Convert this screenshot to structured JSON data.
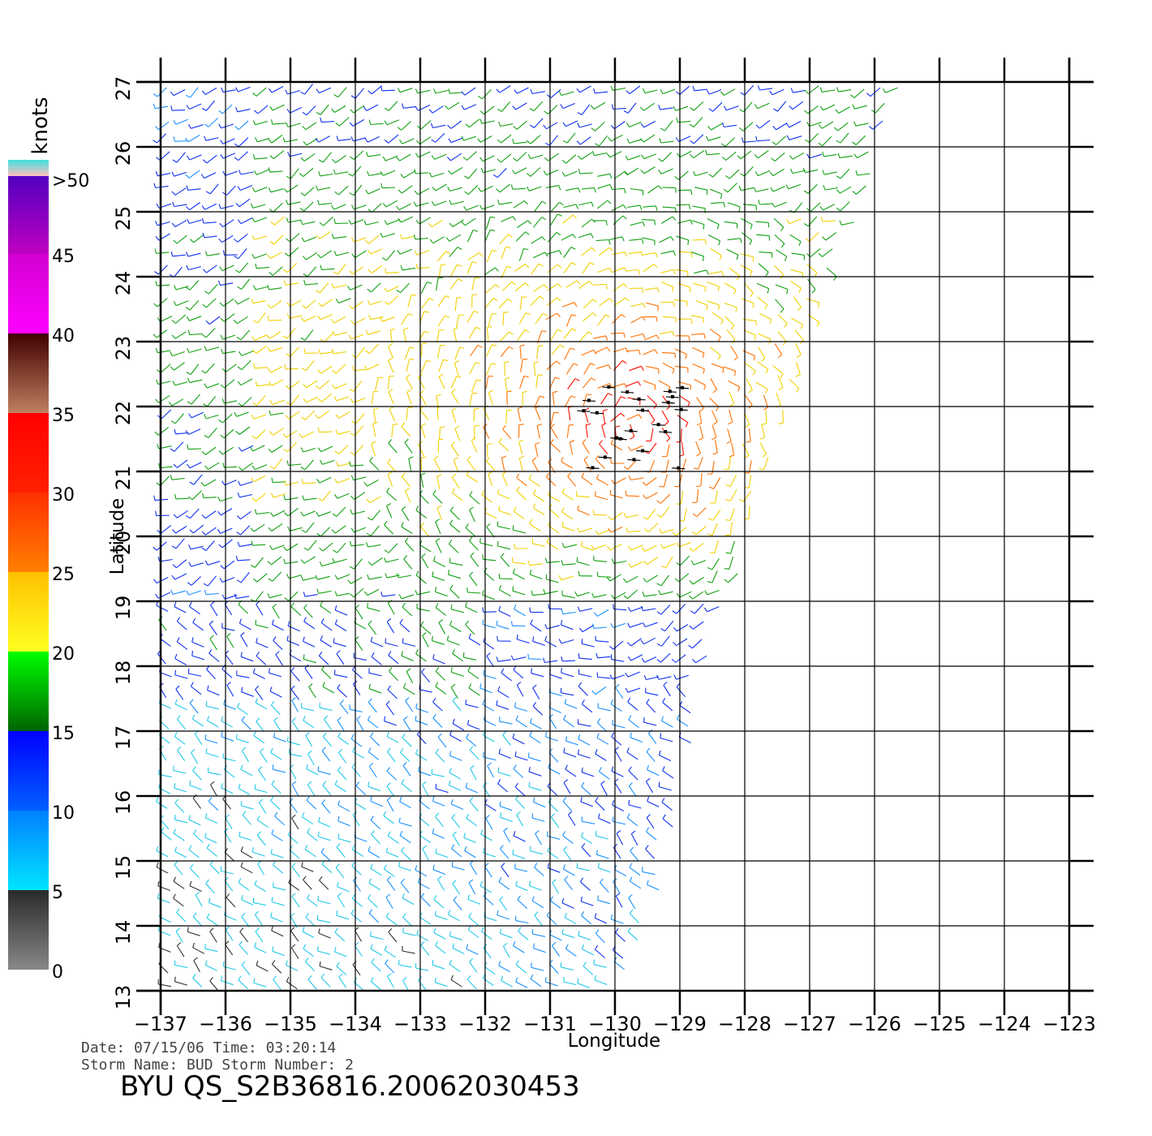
{
  "chart_data": {
    "type": "scatter",
    "subtype": "wind-barb map",
    "xlabel": "Longitude",
    "ylabel": "Latitude",
    "xlim": [
      -137,
      -123
    ],
    "ylim": [
      13,
      27
    ],
    "x_ticks": [
      "-137",
      "-136",
      "-135",
      "-134",
      "-133",
      "-132",
      "-131",
      "-130",
      "-129",
      "-128",
      "-127",
      "-126",
      "-125",
      "-124",
      "-123"
    ],
    "y_ticks": [
      "13",
      "14",
      "15",
      "16",
      "17",
      "18",
      "19",
      "20",
      "21",
      "22",
      "23",
      "24",
      "25",
      "26",
      "27"
    ],
    "grid": true,
    "swath_east_edge": [
      {
        "lat": 13,
        "lon": -130.0
      },
      {
        "lat": 14,
        "lon": -129.6
      },
      {
        "lat": 15,
        "lon": -129.3
      },
      {
        "lat": 16,
        "lon": -129.1
      },
      {
        "lat": 17,
        "lon": -128.9
      },
      {
        "lat": 18,
        "lon": -128.7
      },
      {
        "lat": 19,
        "lon": -128.3
      },
      {
        "lat": 20,
        "lon": -128.0
      },
      {
        "lat": 21,
        "lon": -127.7
      },
      {
        "lat": 22,
        "lon": -127.3
      },
      {
        "lat": 23,
        "lon": -127.0
      },
      {
        "lat": 24,
        "lon": -126.7
      },
      {
        "lat": 25,
        "lon": -126.3
      },
      {
        "lat": 26,
        "lon": -126.0
      },
      {
        "lat": 27,
        "lon": -125.6
      }
    ],
    "storm_center": {
      "lon": -129.8,
      "lat": 21.6
    },
    "legend": {
      "title": "knots",
      "bins": [
        {
          "label": "0",
          "colors": [
            "#888888",
            "#2a2a2a"
          ]
        },
        {
          "label": "5",
          "colors": [
            "#00e5ff",
            "#0080ff"
          ]
        },
        {
          "label": "10",
          "colors": [
            "#0060ff",
            "#0000ff"
          ]
        },
        {
          "label": "15",
          "colors": [
            "#006400",
            "#00ff00"
          ]
        },
        {
          "label": "20",
          "colors": [
            "#ffff20",
            "#ffc000"
          ]
        },
        {
          "label": "25",
          "colors": [
            "#ff8000",
            "#ff3000"
          ]
        },
        {
          "label": "30",
          "colors": [
            "#ff2000",
            "#ff0000"
          ]
        },
        {
          "label": "35",
          "colors": [
            "#c08060",
            "#400000"
          ]
        },
        {
          "label": "40",
          "colors": [
            "#ff00ff",
            "#d000d0"
          ]
        },
        {
          "label": "45",
          "colors": [
            "#c000c0",
            "#5000c0"
          ]
        },
        {
          "label": ">50",
          "colors": [
            "#ffc0c0",
            "#40e0e0"
          ]
        }
      ]
    }
  },
  "info": {
    "date_line": "Date: 07/15/06   Time: 03:20:14",
    "storm_line": "Storm Name: BUD   Storm Number: 2",
    "file_id": "BYU QS_S2B36816.20062030453"
  }
}
